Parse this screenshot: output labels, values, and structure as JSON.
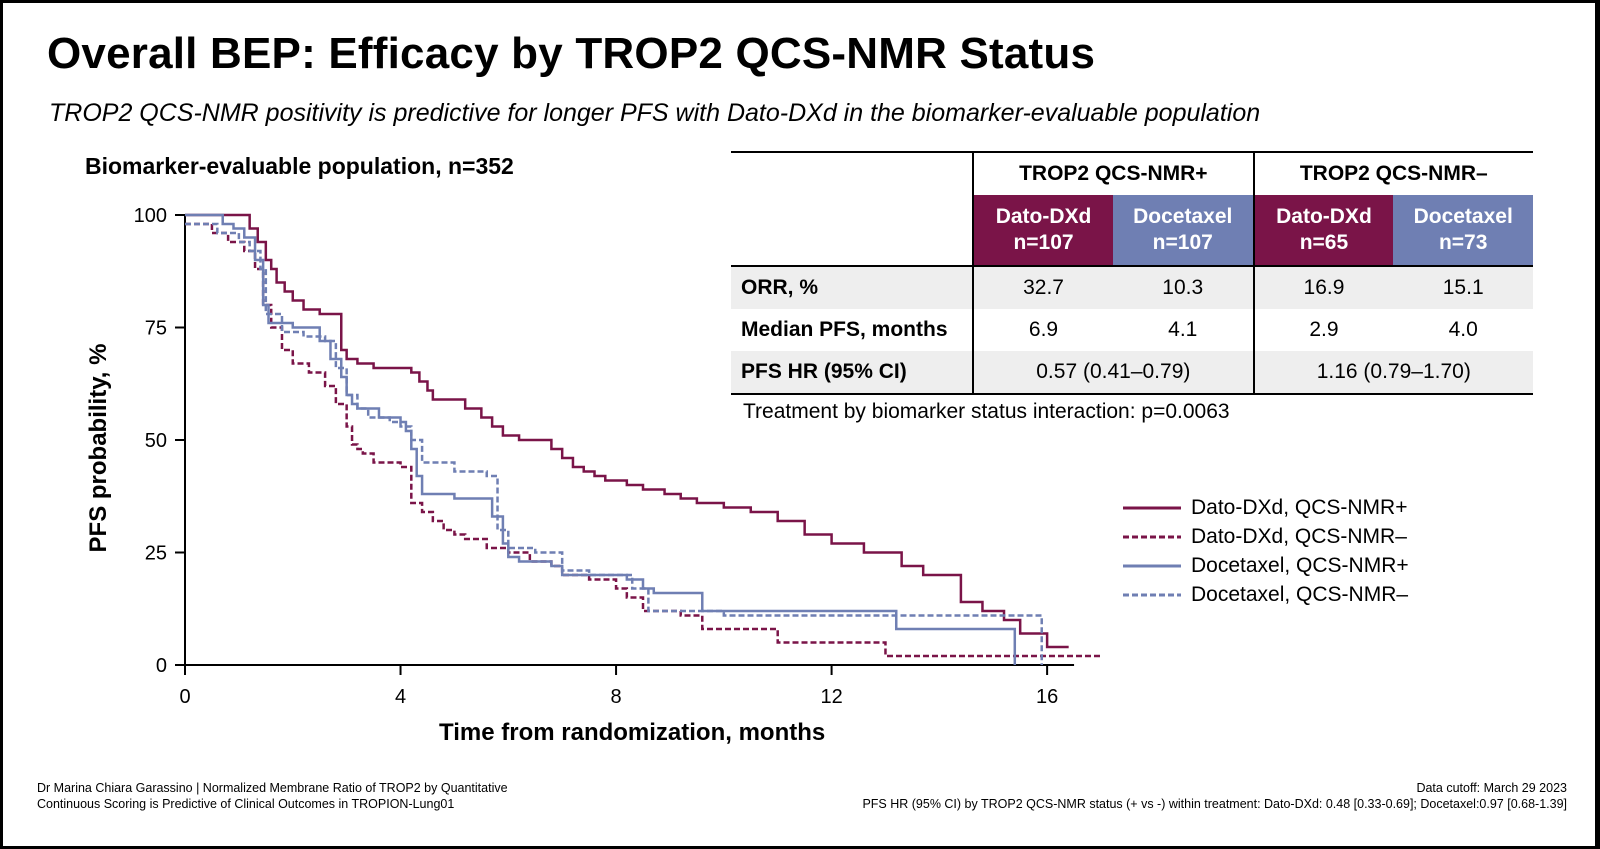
{
  "title": "Overall BEP: Efficacy by TROP2 QCS-NMR Status",
  "subtitle": "TROP2 QCS-NMR positivity is predictive for longer PFS with Dato-DXd in the biomarker-evaluable population",
  "population_label": "Biomarker-evaluable population, n=352",
  "colors": {
    "maroon": "#7a1448",
    "slate": "#6f7fb3"
  },
  "table": {
    "groups": [
      "TROP2 QCS-NMR+",
      "TROP2 QCS-NMR–"
    ],
    "arms": [
      {
        "name": "Dato-DXd",
        "n": "n=107"
      },
      {
        "name": "Docetaxel",
        "n": "n=107"
      },
      {
        "name": "Dato-DXd",
        "n": "n=65"
      },
      {
        "name": "Docetaxel",
        "n": "n=73"
      }
    ],
    "rows": [
      {
        "label": "ORR, %",
        "values": [
          "32.7",
          "10.3",
          "16.9",
          "15.1"
        ]
      },
      {
        "label": "Median PFS, months",
        "values": [
          "6.9",
          "4.1",
          "2.9",
          "4.0"
        ]
      },
      {
        "label": "PFS HR (95% CI)",
        "values": [
          "0.57 (0.41–0.79)",
          "1.16 (0.79–1.70)"
        ]
      }
    ]
  },
  "interaction_text": "Treatment by biomarker status interaction: p=0.0063",
  "chart_data": {
    "type": "line",
    "step": true,
    "xlabel": "Time from randomization, months",
    "ylabel": "PFS probability, %",
    "xlim": [
      0,
      17
    ],
    "ylim": [
      0,
      100
    ],
    "xticks": [
      0,
      4,
      8,
      12,
      16
    ],
    "yticks": [
      0,
      25,
      50,
      75,
      100
    ],
    "legend_position": "right",
    "series": [
      {
        "name": "Dato-DXd, QCS-NMR+",
        "color": "#7a1448",
        "dash": "solid",
        "x": [
          0,
          1.2,
          1.35,
          1.5,
          1.6,
          1.7,
          1.85,
          2.0,
          2.2,
          2.5,
          2.9,
          3.0,
          3.2,
          3.5,
          4.2,
          4.35,
          4.5,
          4.6,
          5.2,
          5.5,
          5.7,
          5.9,
          6.0,
          6.2,
          6.4,
          6.7,
          6.8,
          7.0,
          7.2,
          7.4,
          7.6,
          7.8,
          8.0,
          8.2,
          8.5,
          8.9,
          9.2,
          9.5,
          10.0,
          10.5,
          11.0,
          11.5,
          12.0,
          12.6,
          13.3,
          13.7,
          14.4,
          14.8,
          15.2,
          15.5,
          16.0,
          16.4
        ],
        "y": [
          100,
          97,
          94,
          90,
          88,
          85,
          83,
          81,
          79,
          78,
          70,
          68,
          67,
          66,
          65,
          63,
          61,
          59,
          57,
          55,
          53,
          51,
          51,
          50,
          50,
          50,
          48,
          46,
          44,
          43,
          42,
          41,
          41,
          40,
          39,
          38,
          37,
          36,
          35,
          34,
          32,
          29,
          27,
          25,
          22,
          20,
          14,
          12,
          10,
          7,
          4,
          4
        ]
      },
      {
        "name": "Dato-DXd, QCS-NMR–",
        "color": "#7a1448",
        "dash": "dashed",
        "x": [
          0,
          0.5,
          0.8,
          1.1,
          1.3,
          1.45,
          1.6,
          1.8,
          2.0,
          2.3,
          2.6,
          2.8,
          3.0,
          3.1,
          3.2,
          3.3,
          3.5,
          3.7,
          4.0,
          4.2,
          4.4,
          4.6,
          4.8,
          5.0,
          5.2,
          5.6,
          6.0,
          6.4,
          6.8,
          7.0,
          7.5,
          8.0,
          8.2,
          8.5,
          9.2,
          9.6,
          11.0,
          13.0,
          15.8,
          17.0
        ],
        "y": [
          98,
          96,
          94,
          92,
          88,
          80,
          75,
          70,
          67,
          65,
          62,
          58,
          53,
          49,
          48,
          47,
          45,
          45,
          44,
          36,
          34,
          32,
          30,
          29,
          28,
          26,
          25,
          23,
          22,
          20,
          19,
          17,
          15,
          12,
          11,
          8,
          5,
          2,
          2,
          2
        ]
      },
      {
        "name": "Docetaxel, QCS-NMR+",
        "color": "#6f7fb3",
        "dash": "solid",
        "x": [
          0,
          0.7,
          0.9,
          1.1,
          1.3,
          1.45,
          1.55,
          2.0,
          2.5,
          2.7,
          2.9,
          3.0,
          3.1,
          3.2,
          3.3,
          3.6,
          3.8,
          4.0,
          4.1,
          4.2,
          4.3,
          4.4,
          5.0,
          5.5,
          5.7,
          5.9,
          6.0,
          6.2,
          6.4,
          6.8,
          7.0,
          7.5,
          8.2,
          8.5,
          8.7,
          9.6,
          13.2,
          15.4,
          15.4
        ],
        "y": [
          100,
          98,
          97,
          95,
          90,
          80,
          76,
          75,
          72,
          68,
          64,
          60,
          58,
          57,
          57,
          55,
          55,
          54,
          52,
          48,
          42,
          38,
          37,
          37,
          33,
          27,
          24,
          23,
          23,
          22,
          20,
          20,
          19,
          17,
          16,
          12,
          8,
          8,
          0
        ]
      },
      {
        "name": "Docetaxel, QCS-NMR–",
        "color": "#6f7fb3",
        "dash": "dashed",
        "x": [
          0,
          0.6,
          1.0,
          1.2,
          1.4,
          1.5,
          1.8,
          2.2,
          2.6,
          2.8,
          3.0,
          3.2,
          3.4,
          3.6,
          3.8,
          4.0,
          4.2,
          4.4,
          5.0,
          5.6,
          5.8,
          6.0,
          6.5,
          7.0,
          7.5,
          8.0,
          8.3,
          8.6,
          10.0,
          13.5,
          15.9,
          15.9
        ],
        "y": [
          98,
          96,
          94,
          92,
          88,
          78,
          74,
          73,
          72,
          66,
          60,
          57,
          55,
          55,
          54,
          53,
          50,
          45,
          43,
          42,
          30,
          26,
          25,
          21,
          20,
          20,
          17,
          12,
          11,
          11,
          10,
          0
        ]
      }
    ]
  },
  "footer": {
    "left": "Dr Marina Chiara Garassino | Normalized Membrane Ratio of TROP2 by Quantitative Continuous Scoring is Predictive of Clinical Outcomes in TROPION-Lung01",
    "right_line1": "Data cutoff: March 29 2023",
    "right_line2": "PFS HR (95% CI) by TROP2 QCS-NMR status (+ vs -) within treatment: Dato-DXd: 0.48 [0.33-0.69]; Docetaxel:0.97 [0.68-1.39]"
  }
}
